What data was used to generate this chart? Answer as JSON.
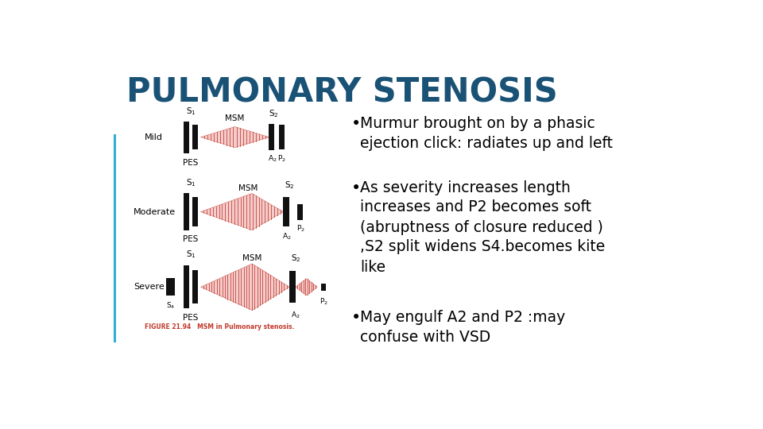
{
  "title": "PULMONARY STENOSIS",
  "title_color": "#1a5276",
  "title_fontsize": 30,
  "title_fontweight": "bold",
  "bg_color": "#ffffff",
  "accent_color": "#2eafd4",
  "bullet_points": [
    "Murmur brought on by a phasic\nejection click: radiates up and left",
    "As severity increases length\nincreases and P2 becomes soft\n(abruptness of closure reduced )\n,S2 split widens S4.becomes kite\nlike",
    "May engulf A2 and P2 :may\nconfuse with VSD"
  ],
  "murmur_color": "#c0392b",
  "block_color": "#111111",
  "text_color": "#222222",
  "caption_color": "#c0392b"
}
